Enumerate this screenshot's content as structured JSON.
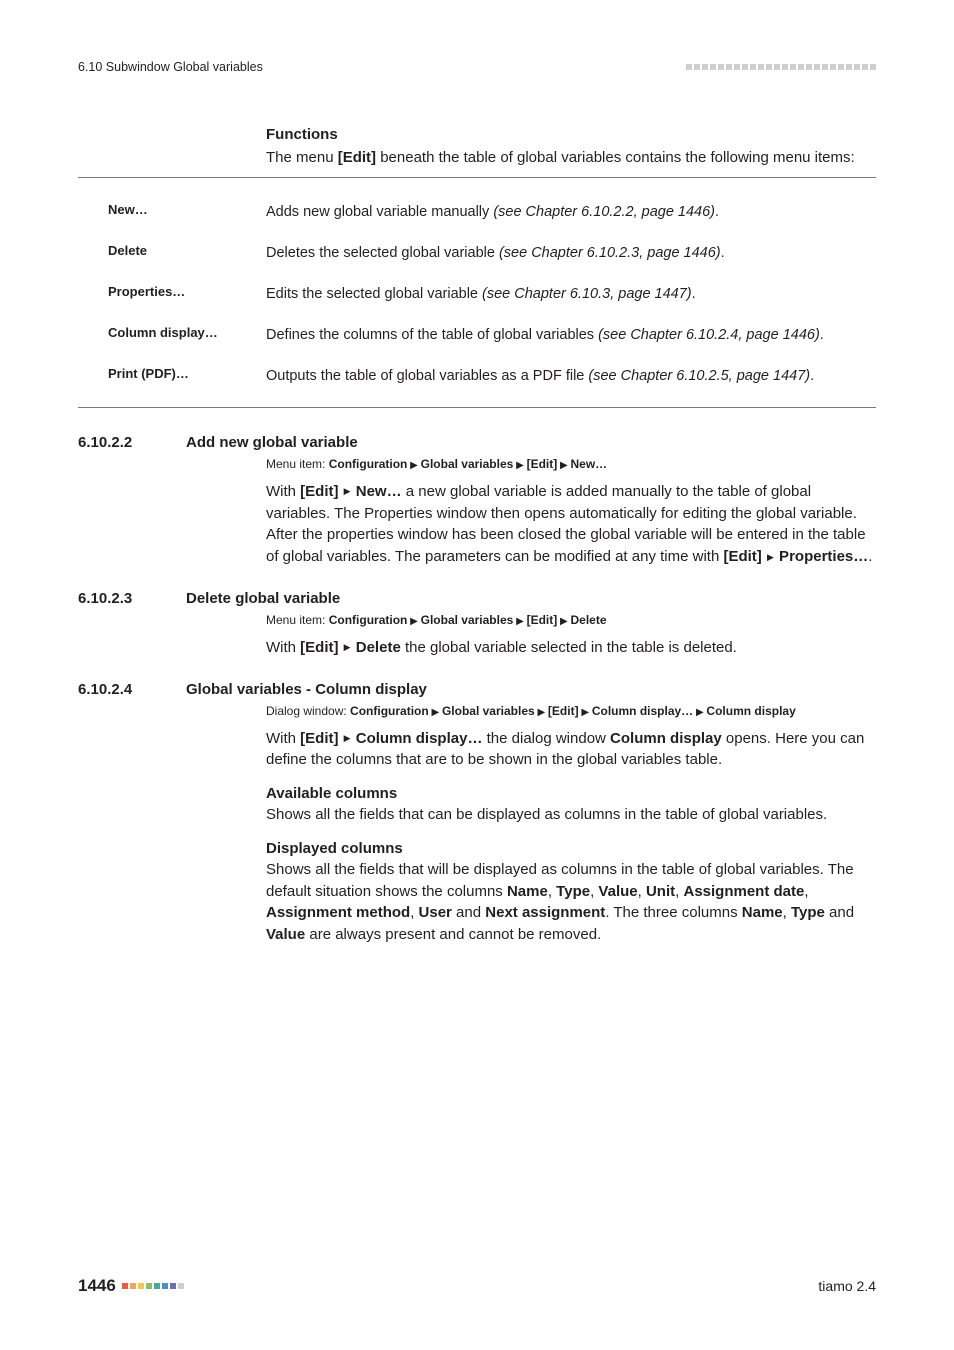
{
  "header": {
    "left": "6.10 Subwindow Global variables",
    "dot_count": 24,
    "dot_color": "#cfcfcf"
  },
  "intro": {
    "heading": "Functions",
    "text_pre": "The menu ",
    "text_bold": "[Edit]",
    "text_post": " beneath the table of global variables contains the following menu items:"
  },
  "func_table": [
    {
      "label": "New…",
      "desc_plain": "Adds new global variable manually ",
      "desc_ital": "(see Chapter 6.10.2.2, page 1446)",
      "desc_tail": "."
    },
    {
      "label": "Delete",
      "desc_plain": "Deletes the selected global variable ",
      "desc_ital": "(see Chapter 6.10.2.3, page 1446)",
      "desc_tail": "."
    },
    {
      "label": "Properties…",
      "desc_plain": "Edits the selected global variable ",
      "desc_ital": "(see Chapter 6.10.3, page 1447)",
      "desc_tail": "."
    },
    {
      "label": "Column display…",
      "desc_plain": "Defines the columns of the table of global variables ",
      "desc_ital": "(see Chapter 6.10.2.4, page 1446)",
      "desc_tail": "."
    },
    {
      "label": "Print (PDF)…",
      "desc_plain": "Outputs the table of global variables as a PDF file ",
      "desc_ital": "(see Chapter 6.10.2.5, page 1447)",
      "desc_tail": "."
    }
  ],
  "sections": [
    {
      "num": "6.10.2.2",
      "title": "Add new global variable",
      "menu_prefix": "Menu item: ",
      "menu_parts": [
        "Configuration",
        "Global variables",
        "[Edit]",
        "New…"
      ],
      "body_frags": [
        {
          "t": "plain",
          "v": "With "
        },
        {
          "t": "bold",
          "v": "[Edit] "
        },
        {
          "t": "tri"
        },
        {
          "t": "bold",
          "v": " New…"
        },
        {
          "t": "plain",
          "v": " a new global variable is added manually to the table of global variables. The Properties window then opens automatically for editing the global variable. After the properties window has been closed the global variable will be entered in the table of global variables. The parameters can be modified at any time with "
        },
        {
          "t": "bold",
          "v": "[Edit] "
        },
        {
          "t": "tri"
        },
        {
          "t": "bold",
          "v": " Properties…"
        },
        {
          "t": "plain",
          "v": "."
        }
      ]
    },
    {
      "num": "6.10.2.3",
      "title": "Delete global variable",
      "menu_prefix": "Menu item: ",
      "menu_parts": [
        "Configuration",
        "Global variables",
        "[Edit]",
        "Delete"
      ],
      "body_frags": [
        {
          "t": "plain",
          "v": "With "
        },
        {
          "t": "bold",
          "v": "[Edit] "
        },
        {
          "t": "tri"
        },
        {
          "t": "bold",
          "v": " Delete"
        },
        {
          "t": "plain",
          "v": " the global variable selected in the table is deleted."
        }
      ]
    },
    {
      "num": "6.10.2.4",
      "title": "Global variables - Column display",
      "menu_prefix": "Dialog window: ",
      "menu_parts": [
        "Configuration",
        "Global variables",
        "[Edit]",
        "Column display…",
        "Column display"
      ],
      "body_frags": [
        {
          "t": "plain",
          "v": "With "
        },
        {
          "t": "bold",
          "v": "[Edit] "
        },
        {
          "t": "tri"
        },
        {
          "t": "bold",
          "v": " Column display…"
        },
        {
          "t": "plain",
          "v": " the dialog window "
        },
        {
          "t": "bold",
          "v": "Column display"
        },
        {
          "t": "plain",
          "v": " opens. Here you can define the columns that are to be shown in the global variables table."
        }
      ],
      "subs": [
        {
          "heading": "Available columns",
          "frags": [
            {
              "t": "plain",
              "v": "Shows all the fields that can be displayed as columns in the table of global variables."
            }
          ]
        },
        {
          "heading": "Displayed columns",
          "frags": [
            {
              "t": "plain",
              "v": "Shows all the fields that will be displayed as columns in the table of global variables. The default situation shows the columns "
            },
            {
              "t": "bold",
              "v": "Name"
            },
            {
              "t": "plain",
              "v": ", "
            },
            {
              "t": "bold",
              "v": "Type"
            },
            {
              "t": "plain",
              "v": ", "
            },
            {
              "t": "bold",
              "v": "Value"
            },
            {
              "t": "plain",
              "v": ", "
            },
            {
              "t": "bold",
              "v": "Unit"
            },
            {
              "t": "plain",
              "v": ", "
            },
            {
              "t": "bold",
              "v": "Assignment date"
            },
            {
              "t": "plain",
              "v": ", "
            },
            {
              "t": "bold",
              "v": "Assignment method"
            },
            {
              "t": "plain",
              "v": ", "
            },
            {
              "t": "bold",
              "v": "User"
            },
            {
              "t": "plain",
              "v": " and "
            },
            {
              "t": "bold",
              "v": "Next assignment"
            },
            {
              "t": "plain",
              "v": ". The three columns "
            },
            {
              "t": "bold",
              "v": "Name"
            },
            {
              "t": "plain",
              "v": ", "
            },
            {
              "t": "bold",
              "v": "Type"
            },
            {
              "t": "plain",
              "v": " and "
            },
            {
              "t": "bold",
              "v": "Value"
            },
            {
              "t": "plain",
              "v": " are always present and cannot be removed."
            }
          ]
        }
      ]
    }
  ],
  "footer": {
    "page": "1446",
    "right": "tiamo 2.4",
    "dot_colors": [
      "#e85c41",
      "#f2a35e",
      "#f2c94c",
      "#8fbf6b",
      "#4aa89a",
      "#4a90c9",
      "#6a6fb3",
      "#cfcfcf"
    ]
  }
}
